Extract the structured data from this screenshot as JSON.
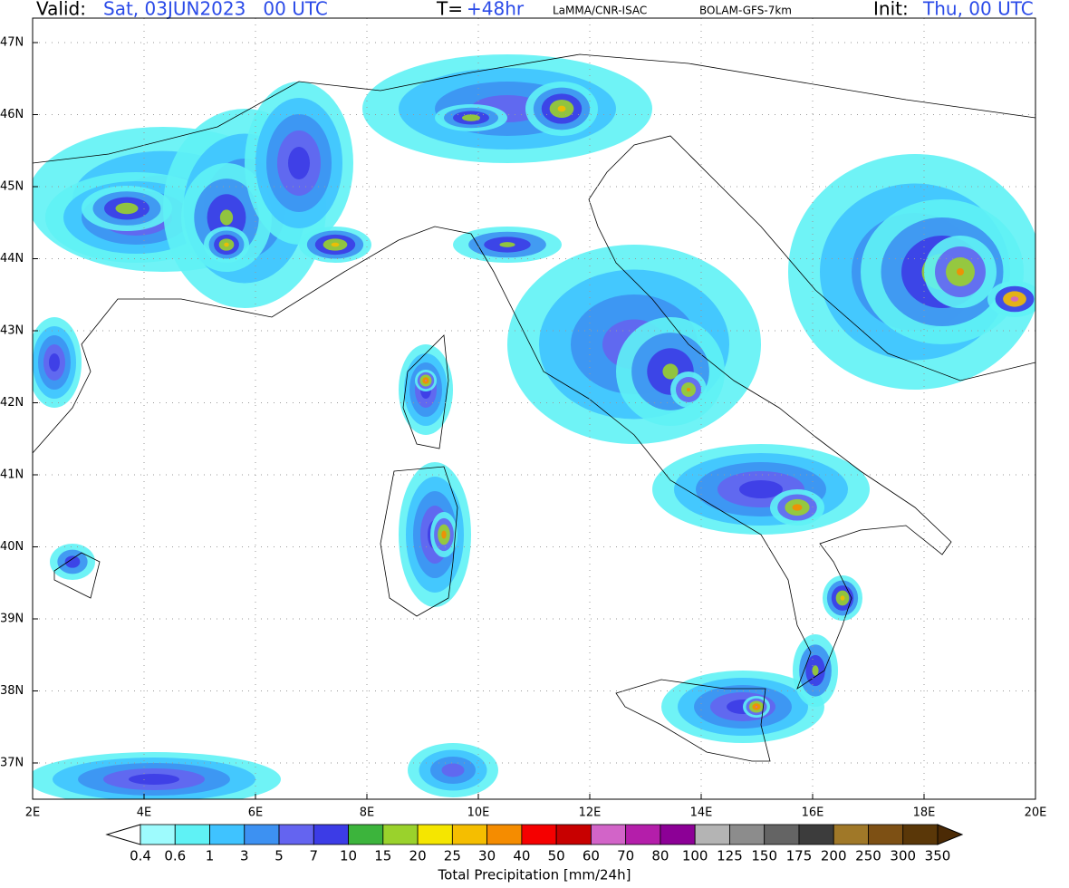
{
  "header": {
    "valid_label": "Valid:",
    "valid_value": "Sat, 03JUN2023   00 UTC",
    "t_label": "T=",
    "t_value": "+48hr",
    "source": "LaMMA/CNR-ISAC",
    "model": "BOLAM-GFS-7km",
    "init_label": "Init:",
    "init_value": "Thu, 00 UTC"
  },
  "map": {
    "lat_labels": [
      "47N",
      "46N",
      "45N",
      "44N",
      "43N",
      "42N",
      "41N",
      "40N",
      "39N",
      "38N",
      "37N"
    ],
    "lon_labels": [
      "2E",
      "4E",
      "6E",
      "8E",
      "10E",
      "12E",
      "14E",
      "16E",
      "18E",
      "20E"
    ]
  },
  "colorbar": {
    "labels": [
      "0.4",
      "0.6",
      "1",
      "3",
      "5",
      "7",
      "10",
      "15",
      "20",
      "25",
      "30",
      "40",
      "50",
      "60",
      "70",
      "80",
      "100",
      "125",
      "150",
      "175",
      "200",
      "250",
      "300",
      "350"
    ],
    "colors": [
      "#9efbfd",
      "#5ff2f5",
      "#3fc3ff",
      "#3d91f2",
      "#6464f0",
      "#3c3ce6",
      "#3cb43c",
      "#9ad22c",
      "#f5e600",
      "#f5be00",
      "#f58c00",
      "#f50000",
      "#c80000",
      "#d264c8",
      "#b41eaa",
      "#8c0096",
      "#b4b4b4",
      "#8c8c8c",
      "#646464",
      "#3c3c3c",
      "#a07828",
      "#7d5014",
      "#5a3708"
    ],
    "title": "Total Precipitation [mm/24h]"
  }
}
